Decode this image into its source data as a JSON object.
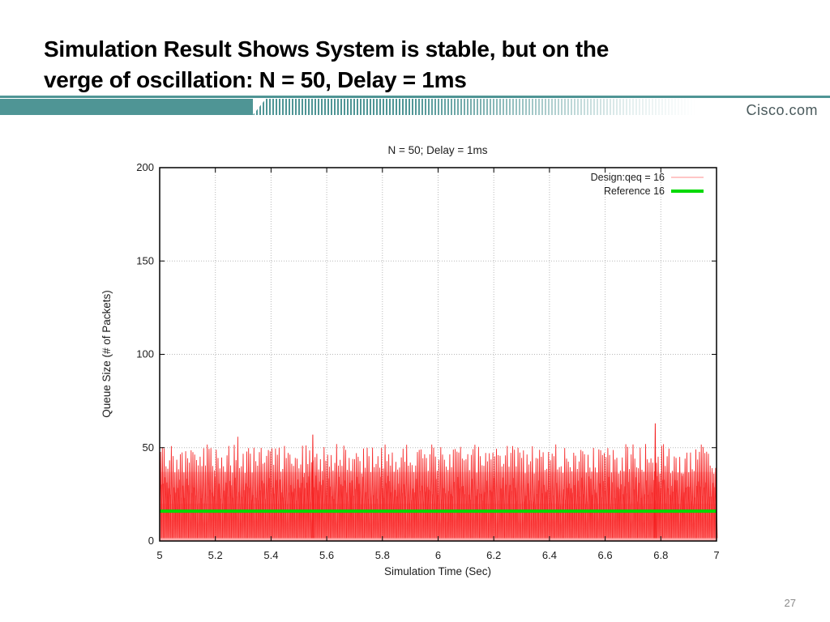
{
  "slide": {
    "title_line1": "Simulation Result Shows System is stable, but on the",
    "title_line2": "verge of oscillation: N = 50, Delay = 1ms",
    "brand": "Cisco.com",
    "page_number": "27",
    "accent_teal": "#4f9595",
    "brand_text_color": "#4a5a5c"
  },
  "chart_data": {
    "type": "line",
    "title": "N = 50; Delay = 1ms",
    "xlabel": "Simulation Time (Sec)",
    "ylabel": "Queue Size (# of Packets)",
    "xlim": [
      5,
      7
    ],
    "ylim": [
      0,
      200
    ],
    "x_ticks": [
      5,
      5.2,
      5.4,
      5.6,
      5.8,
      6,
      6.2,
      6.4,
      6.6,
      6.8,
      7
    ],
    "x_tick_labels": [
      "5",
      "5.2",
      "5.4",
      "5.6",
      "5.8",
      "6",
      "6.2",
      "6.4",
      "6.6",
      "6.8",
      "7"
    ],
    "y_ticks": [
      0,
      50,
      100,
      150,
      200
    ],
    "y_tick_labels": [
      "0",
      "50",
      "100",
      "150",
      "200"
    ],
    "grid": true,
    "grid_color": "#b8b8b8",
    "legend_position": "top-right",
    "series": [
      {
        "name": "Design:qeq = 16",
        "color": "#f52020",
        "under_color": "#ff5555",
        "legend_color": "#ffb3b3",
        "type": "dense-oscillation",
        "oscillation": {
          "seed": 20240516,
          "teeth": 310,
          "min": 1.5,
          "peak_mean": 44,
          "peak_spread": 8,
          "peak_clamp": [
            33,
            53
          ],
          "under_peak_mean": 26,
          "under_peak_spread": 9,
          "under_peak_clamp": [
            10,
            36
          ],
          "tall_tooth_chance": 0.02,
          "tall_tooth_boost": 5,
          "wash_bands": [
            {
              "to": 37,
              "color": "rgba(255,120,120,0.30)"
            },
            {
              "to": 20,
              "color": "rgba(255,70,70,0.30)"
            }
          ],
          "spikes": [
            {
              "x": 5.55,
              "y": 57
            },
            {
              "x": 6.78,
              "y": 63
            }
          ]
        }
      },
      {
        "name": "Reference 16",
        "color": "#00d900",
        "type": "hline",
        "value": 16,
        "line_width": 4
      }
    ]
  }
}
